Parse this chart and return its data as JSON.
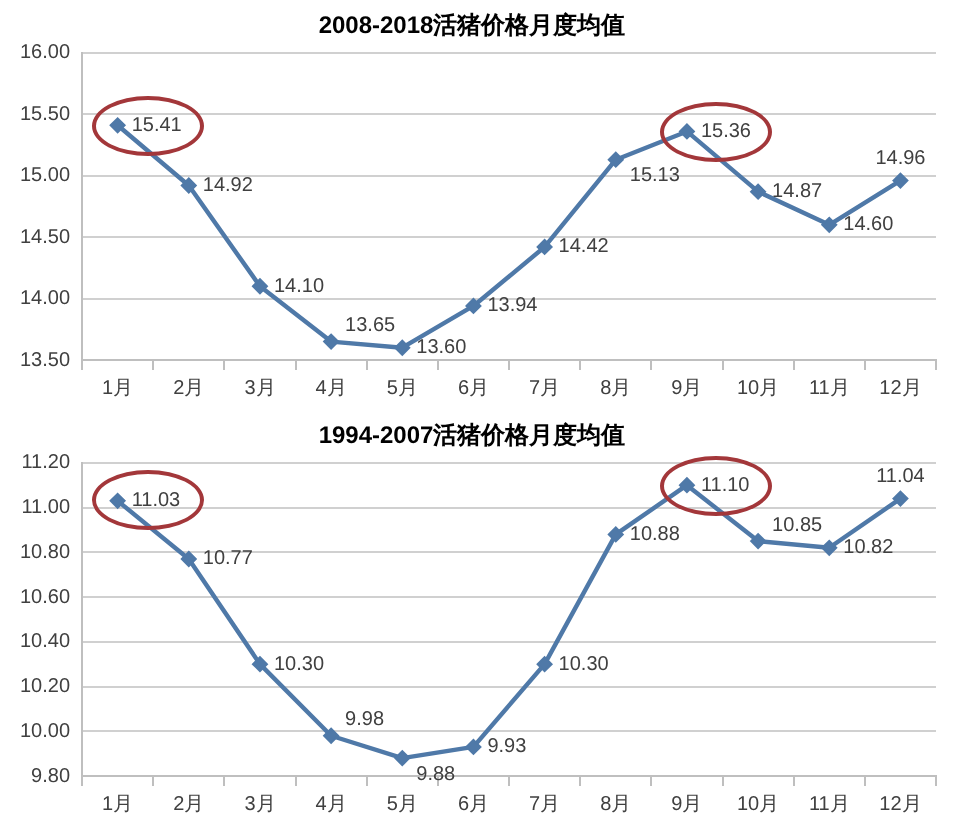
{
  "chart_data": [
    {
      "type": "line",
      "title": "2008-2018活猪价格月度均值",
      "categories": [
        "1月",
        "2月",
        "3月",
        "4月",
        "5月",
        "6月",
        "7月",
        "8月",
        "9月",
        "10月",
        "11月",
        "12月"
      ],
      "values": [
        15.41,
        14.92,
        14.1,
        13.65,
        13.6,
        13.94,
        14.42,
        15.13,
        15.36,
        14.87,
        14.6,
        14.96
      ],
      "value_labels": [
        "15.41",
        "14.92",
        "14.10",
        "13.65",
        "13.60",
        "13.94",
        "14.42",
        "15.13",
        "15.36",
        "14.87",
        "14.60",
        "14.96"
      ],
      "color": "#4f79a8",
      "ylim": [
        13.5,
        16
      ],
      "yticks": [
        {
          "value": 13.5,
          "label": "13.50"
        },
        {
          "value": 14,
          "label": "14.00"
        },
        {
          "value": 14.5,
          "label": "14.50"
        },
        {
          "value": 15,
          "label": "15.00"
        },
        {
          "value": 15.5,
          "label": "15.50"
        },
        {
          "value": 16,
          "label": "16.00"
        }
      ],
      "grid": "y",
      "marker": "diamond",
      "line_style": "solid"
    },
    {
      "type": "line",
      "title": "1994-2007活猪价格月度均值",
      "categories": [
        "1月",
        "2月",
        "3月",
        "4月",
        "5月",
        "6月",
        "7月",
        "8月",
        "9月",
        "10月",
        "11月",
        "12月"
      ],
      "values": [
        11.03,
        10.77,
        10.3,
        9.98,
        9.88,
        9.93,
        10.3,
        10.88,
        11.1,
        10.85,
        10.82,
        11.04
      ],
      "value_labels": [
        "11.03",
        "10.77",
        "10.30",
        "9.98",
        "9.88",
        "9.93",
        "10.30",
        "10.88",
        "11.10",
        "10.85",
        "10.82",
        "11.04"
      ],
      "color": "#4f79a8",
      "ylim": [
        9.8,
        11.2
      ],
      "yticks": [
        {
          "value": 9.8,
          "label": "9.80"
        },
        {
          "value": 10,
          "label": "10.00"
        },
        {
          "value": 10.2,
          "label": "10.20"
        },
        {
          "value": 10.4,
          "label": "10.40"
        },
        {
          "value": 10.6,
          "label": "10.60"
        },
        {
          "value": 10.8,
          "label": "10.80"
        },
        {
          "value": 11,
          "label": "11.00"
        },
        {
          "value": 11.2,
          "label": "11.20"
        }
      ],
      "grid": "y",
      "marker": "diamond",
      "line_style": "solid"
    }
  ]
}
